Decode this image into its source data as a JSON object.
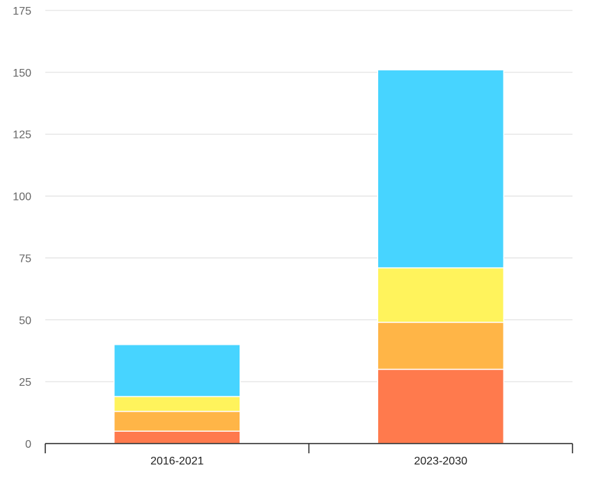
{
  "chart_data": {
    "type": "bar",
    "stacked": true,
    "categories": [
      "2016-2021",
      "2023-2030"
    ],
    "series": [
      {
        "color": "#ff7a4d",
        "values": [
          5,
          30
        ]
      },
      {
        "color": "#ffb547",
        "values": [
          8,
          19
        ]
      },
      {
        "color": "#fff35c",
        "values": [
          6,
          22
        ]
      },
      {
        "color": "#47d4ff",
        "values": [
          21,
          80
        ]
      }
    ],
    "yticks": [
      "0",
      "25",
      "50",
      "75",
      "100",
      "125",
      "150",
      "175"
    ],
    "ylim": [
      0,
      175
    ],
    "grid": true,
    "legend": "none"
  }
}
